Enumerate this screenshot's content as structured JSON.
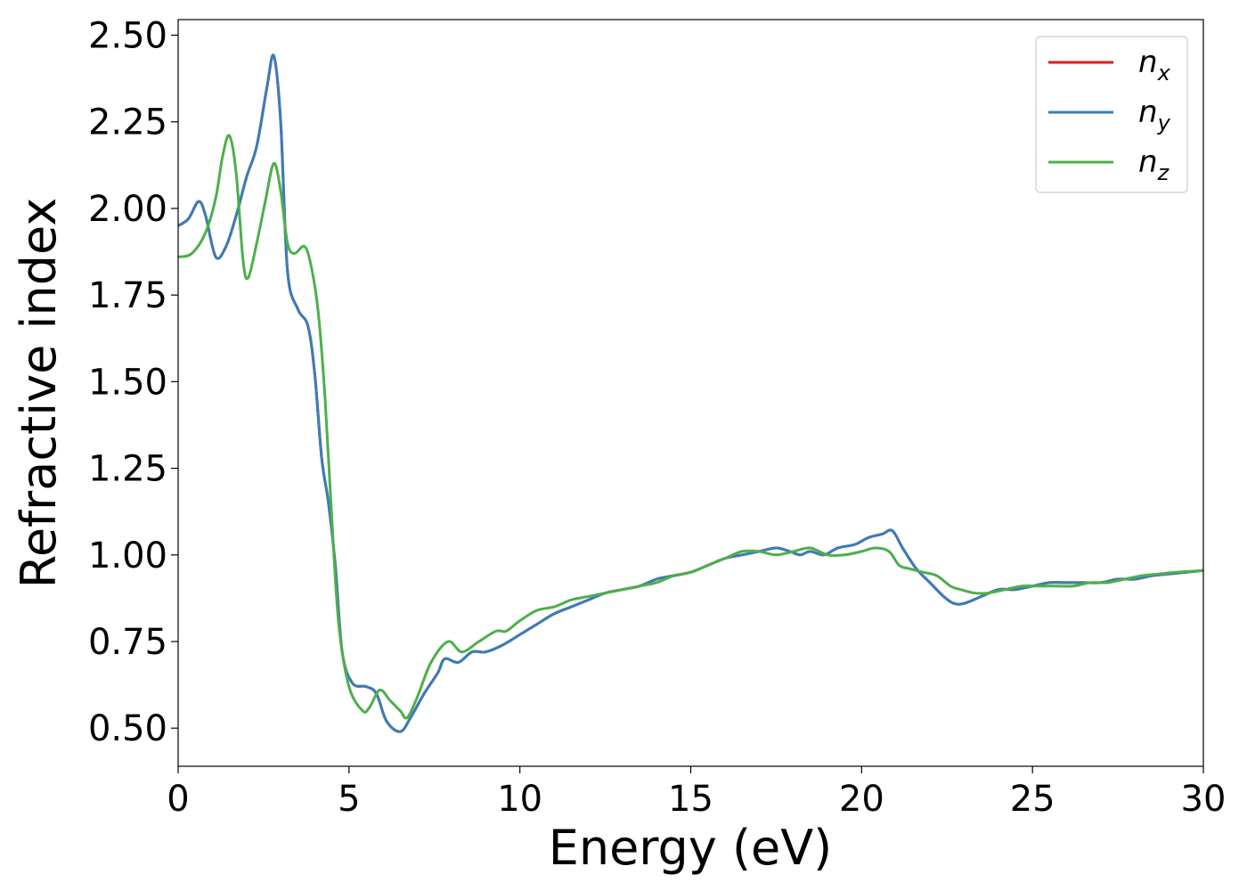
{
  "chart_data": {
    "type": "line",
    "title": "",
    "xlabel": "Energy (eV)",
    "ylabel": "Refractive index",
    "xlim": [
      0,
      30
    ],
    "ylim": [
      0.39,
      2.545
    ],
    "xticks": [
      0,
      5,
      10,
      15,
      20,
      25,
      30
    ],
    "xtick_labels": [
      "0",
      "5",
      "10",
      "15",
      "20",
      "25",
      "30"
    ],
    "yticks": [
      0.5,
      0.75,
      1.0,
      1.25,
      1.5,
      1.75,
      2.0,
      2.25,
      2.5
    ],
    "ytick_labels": [
      "0.50",
      "0.75",
      "1.00",
      "1.25",
      "1.50",
      "1.75",
      "2.00",
      "2.25",
      "2.50"
    ],
    "grid": false,
    "legend_position": "top-right",
    "series": [
      {
        "name": "n",
        "subscript": "x",
        "color": "#e41a1c",
        "x": [
          0,
          0.3,
          0.6,
          0.8,
          1.1,
          1.4,
          1.7,
          2.0,
          2.3,
          2.6,
          2.8,
          3.0,
          3.2,
          3.5,
          3.8,
          4.0,
          4.2,
          4.4,
          4.6,
          4.8,
          5.1,
          5.5,
          5.8,
          6.1,
          6.5,
          6.8,
          7.2,
          7.6,
          7.8,
          8.2,
          8.6,
          9.0,
          9.5,
          10.0,
          10.5,
          11.0,
          11.5,
          12.0,
          12.5,
          13.0,
          13.5,
          14.0,
          14.5,
          15.0,
          15.5,
          16.0,
          16.5,
          17.0,
          17.5,
          17.9,
          18.2,
          18.5,
          18.9,
          19.3,
          19.8,
          20.2,
          20.6,
          20.9,
          21.2,
          21.6,
          22.0,
          22.4,
          22.7,
          23.0,
          23.5,
          24.0,
          24.5,
          25.0,
          25.5,
          26.0,
          26.5,
          27.0,
          27.5,
          28.0,
          28.5,
          29.0,
          29.5,
          30.0
        ],
        "y": [
          1.95,
          1.97,
          2.02,
          1.98,
          1.86,
          1.89,
          1.98,
          2.09,
          2.18,
          2.35,
          2.44,
          2.25,
          1.82,
          1.71,
          1.66,
          1.52,
          1.28,
          1.15,
          0.97,
          0.72,
          0.63,
          0.62,
          0.6,
          0.52,
          0.49,
          0.53,
          0.6,
          0.66,
          0.7,
          0.69,
          0.72,
          0.72,
          0.74,
          0.77,
          0.8,
          0.83,
          0.85,
          0.87,
          0.89,
          0.9,
          0.91,
          0.93,
          0.94,
          0.95,
          0.97,
          0.99,
          1.0,
          1.01,
          1.02,
          1.01,
          1.0,
          1.01,
          1.0,
          1.02,
          1.03,
          1.05,
          1.06,
          1.07,
          1.02,
          0.96,
          0.92,
          0.88,
          0.86,
          0.86,
          0.88,
          0.9,
          0.9,
          0.91,
          0.92,
          0.92,
          0.92,
          0.92,
          0.93,
          0.93,
          0.94,
          0.945,
          0.95,
          0.955
        ]
      },
      {
        "name": "n",
        "subscript": "y",
        "color": "#377eb8",
        "x": [
          0,
          0.3,
          0.6,
          0.8,
          1.1,
          1.4,
          1.7,
          2.0,
          2.3,
          2.6,
          2.8,
          3.0,
          3.2,
          3.5,
          3.8,
          4.0,
          4.2,
          4.4,
          4.6,
          4.8,
          5.1,
          5.5,
          5.8,
          6.1,
          6.5,
          6.8,
          7.2,
          7.6,
          7.8,
          8.2,
          8.6,
          9.0,
          9.5,
          10.0,
          10.5,
          11.0,
          11.5,
          12.0,
          12.5,
          13.0,
          13.5,
          14.0,
          14.5,
          15.0,
          15.5,
          16.0,
          16.5,
          17.0,
          17.5,
          17.9,
          18.2,
          18.5,
          18.9,
          19.3,
          19.8,
          20.2,
          20.6,
          20.9,
          21.2,
          21.6,
          22.0,
          22.4,
          22.7,
          23.0,
          23.5,
          24.0,
          24.5,
          25.0,
          25.5,
          26.0,
          26.5,
          27.0,
          27.5,
          28.0,
          28.5,
          29.0,
          29.5,
          30.0
        ],
        "y": [
          1.95,
          1.97,
          2.02,
          1.98,
          1.86,
          1.89,
          1.98,
          2.09,
          2.18,
          2.35,
          2.44,
          2.25,
          1.82,
          1.71,
          1.66,
          1.52,
          1.28,
          1.15,
          0.97,
          0.72,
          0.63,
          0.62,
          0.6,
          0.52,
          0.49,
          0.53,
          0.6,
          0.66,
          0.7,
          0.69,
          0.72,
          0.72,
          0.74,
          0.77,
          0.8,
          0.83,
          0.85,
          0.87,
          0.89,
          0.9,
          0.91,
          0.93,
          0.94,
          0.95,
          0.97,
          0.99,
          1.0,
          1.01,
          1.02,
          1.01,
          1.0,
          1.01,
          1.0,
          1.02,
          1.03,
          1.05,
          1.06,
          1.07,
          1.02,
          0.96,
          0.92,
          0.88,
          0.86,
          0.86,
          0.88,
          0.9,
          0.9,
          0.91,
          0.92,
          0.92,
          0.92,
          0.92,
          0.93,
          0.93,
          0.94,
          0.945,
          0.95,
          0.955
        ]
      },
      {
        "name": "n",
        "subscript": "z",
        "color": "#4daf4a",
        "x": [
          0,
          0.4,
          0.8,
          1.1,
          1.3,
          1.5,
          1.7,
          1.9,
          2.05,
          2.3,
          2.55,
          2.8,
          3.0,
          3.2,
          3.4,
          3.7,
          3.9,
          4.1,
          4.3,
          4.5,
          4.7,
          5.0,
          5.4,
          5.6,
          5.9,
          6.2,
          6.5,
          6.7,
          7.0,
          7.4,
          7.9,
          8.3,
          8.8,
          9.3,
          9.6,
          10.0,
          10.5,
          11.0,
          11.5,
          12.0,
          12.5,
          13.0,
          13.5,
          14.0,
          14.5,
          15.0,
          15.5,
          16.0,
          16.5,
          17.0,
          17.5,
          18.0,
          18.5,
          19.0,
          19.5,
          20.0,
          20.4,
          20.8,
          21.1,
          21.4,
          21.8,
          22.2,
          22.6,
          22.9,
          23.3,
          23.7,
          24.2,
          24.7,
          25.2,
          25.7,
          26.2,
          26.7,
          27.2,
          27.7,
          28.2,
          28.7,
          29.2,
          30.0
        ],
        "y": [
          1.86,
          1.87,
          1.93,
          2.03,
          2.15,
          2.21,
          2.1,
          1.85,
          1.8,
          1.9,
          2.02,
          2.13,
          2.05,
          1.9,
          1.87,
          1.89,
          1.83,
          1.7,
          1.45,
          1.1,
          0.8,
          0.62,
          0.55,
          0.56,
          0.61,
          0.58,
          0.55,
          0.53,
          0.59,
          0.69,
          0.75,
          0.72,
          0.75,
          0.78,
          0.78,
          0.81,
          0.84,
          0.85,
          0.87,
          0.88,
          0.89,
          0.9,
          0.91,
          0.92,
          0.94,
          0.95,
          0.97,
          0.99,
          1.01,
          1.01,
          1.0,
          1.01,
          1.02,
          1.0,
          1.0,
          1.01,
          1.02,
          1.01,
          0.97,
          0.96,
          0.95,
          0.94,
          0.91,
          0.9,
          0.89,
          0.89,
          0.9,
          0.91,
          0.91,
          0.91,
          0.91,
          0.92,
          0.92,
          0.93,
          0.94,
          0.945,
          0.95,
          0.955
        ]
      }
    ]
  }
}
